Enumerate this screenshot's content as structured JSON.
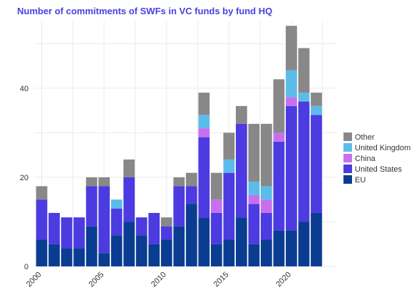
{
  "chart_data": {
    "type": "bar",
    "stacked": true,
    "title": "Number of commitments of SWFs in VC funds by fund HQ",
    "xlabel": "",
    "ylabel": "",
    "x": [
      2000,
      2001,
      2002,
      2003,
      2004,
      2005,
      2006,
      2007,
      2008,
      2009,
      2010,
      2011,
      2012,
      2013,
      2014,
      2015,
      2016,
      2017,
      2018,
      2019,
      2020,
      2021,
      2022
    ],
    "xticks": [
      2000,
      2005,
      2010,
      2015,
      2020
    ],
    "xtick_labels": [
      "2000",
      "2005",
      "2010",
      "2015",
      "2020"
    ],
    "xlim": [
      1999.4,
      2023.6
    ],
    "yticks": [
      0,
      20,
      40
    ],
    "ytick_labels": [
      "0",
      "20",
      "40"
    ],
    "ylim": [
      0,
      55
    ],
    "grid": true,
    "legend_position": "right",
    "series": [
      {
        "name": "EU",
        "color": "#0a3d91",
        "values": [
          6,
          5,
          4,
          4,
          9,
          3,
          7,
          10,
          7,
          5,
          6,
          9,
          14,
          11,
          5,
          6,
          11,
          5,
          6,
          8,
          8,
          10,
          12
        ]
      },
      {
        "name": "United States",
        "color": "#4b3be0",
        "values": [
          9,
          7,
          7,
          7,
          9,
          15,
          6,
          10,
          4,
          7,
          3,
          9,
          4,
          18,
          7,
          15,
          21,
          9,
          6,
          20,
          28,
          27,
          22
        ]
      },
      {
        "name": "China",
        "color": "#c86ff0",
        "values": [
          0,
          0,
          0,
          0,
          0,
          0,
          0,
          0,
          0,
          0,
          0,
          0,
          0,
          2,
          3,
          0,
          0,
          2,
          3,
          2,
          2,
          0,
          0
        ]
      },
      {
        "name": "United Kingdom",
        "color": "#5bbcea",
        "values": [
          0,
          0,
          0,
          0,
          0,
          0,
          2,
          0,
          0,
          0,
          0,
          0,
          0,
          3,
          0,
          3,
          0,
          3,
          3,
          0,
          6,
          2,
          2
        ]
      },
      {
        "name": "Other",
        "color": "#888888",
        "values": [
          3,
          0,
          0,
          0,
          2,
          2,
          0,
          4,
          0,
          0,
          2,
          2,
          3,
          5,
          6,
          6,
          4,
          13,
          14,
          12,
          10,
          10,
          3
        ]
      }
    ],
    "legend_order": [
      "Other",
      "United Kingdom",
      "China",
      "United States",
      "EU"
    ]
  }
}
